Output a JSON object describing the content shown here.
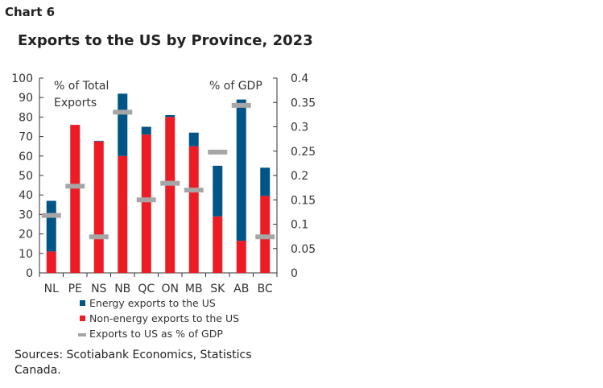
{
  "chart_number": "Chart 6",
  "source": "Sources: Scotiabank Economics, Statistics Canada.",
  "chart_data": {
    "type": "bar",
    "stacked": true,
    "title": "Exports to the US by Province, 2023",
    "categories": [
      "NL",
      "PE",
      "NS",
      "NB",
      "QC",
      "ON",
      "MB",
      "SK",
      "AB",
      "BC"
    ],
    "left_axis": {
      "label_lines": [
        "% of Total",
        "Exports"
      ],
      "ylim": [
        0,
        100
      ],
      "ticks": [
        "0",
        "10",
        "20",
        "30",
        "40",
        "50",
        "60",
        "70",
        "80",
        "90",
        "100"
      ]
    },
    "right_axis": {
      "label": "% of GDP",
      "ylim": [
        0,
        0.4
      ],
      "ticks": [
        "0",
        "0.05",
        "0.1",
        "0.15",
        "0.2",
        "0.25",
        "0.3",
        "0.35",
        "0.4"
      ]
    },
    "series": [
      {
        "name": "Non-energy exports to the US",
        "axis": "left",
        "color": "#ed1c24",
        "values": [
          11,
          76,
          67.5,
          60,
          71,
          80,
          65,
          29,
          16.5,
          39.5
        ]
      },
      {
        "name": "Energy exports to the US",
        "axis": "left",
        "color": "#005587",
        "values": [
          26,
          0,
          0.3,
          32,
          4,
          1,
          7,
          26,
          72.5,
          14.5
        ]
      },
      {
        "name": "Exports to US as % of GDP",
        "axis": "right",
        "type": "marker",
        "color": "#a6a6a6",
        "values": [
          0.118,
          0.178,
          0.074,
          0.33,
          0.15,
          0.184,
          0.17,
          0.248,
          0.344,
          0.074
        ]
      }
    ],
    "legend": {
      "placement": "bottom",
      "entries": [
        "Energy exports to the US",
        "Non-energy exports to the US",
        "Exports to US as % of GDP"
      ]
    },
    "grid": false
  }
}
